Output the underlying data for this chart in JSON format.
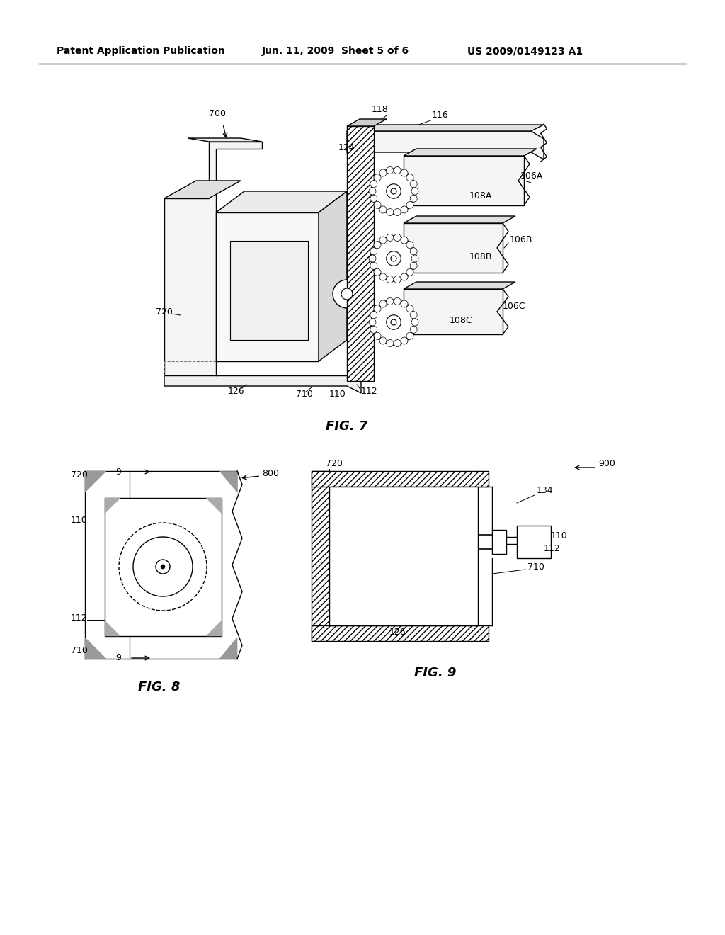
{
  "bg_color": "#ffffff",
  "line_color": "#000000",
  "header_left": "Patent Application Publication",
  "header_mid": "Jun. 11, 2009  Sheet 5 of 6",
  "header_right": "US 2009/0149123 A1"
}
